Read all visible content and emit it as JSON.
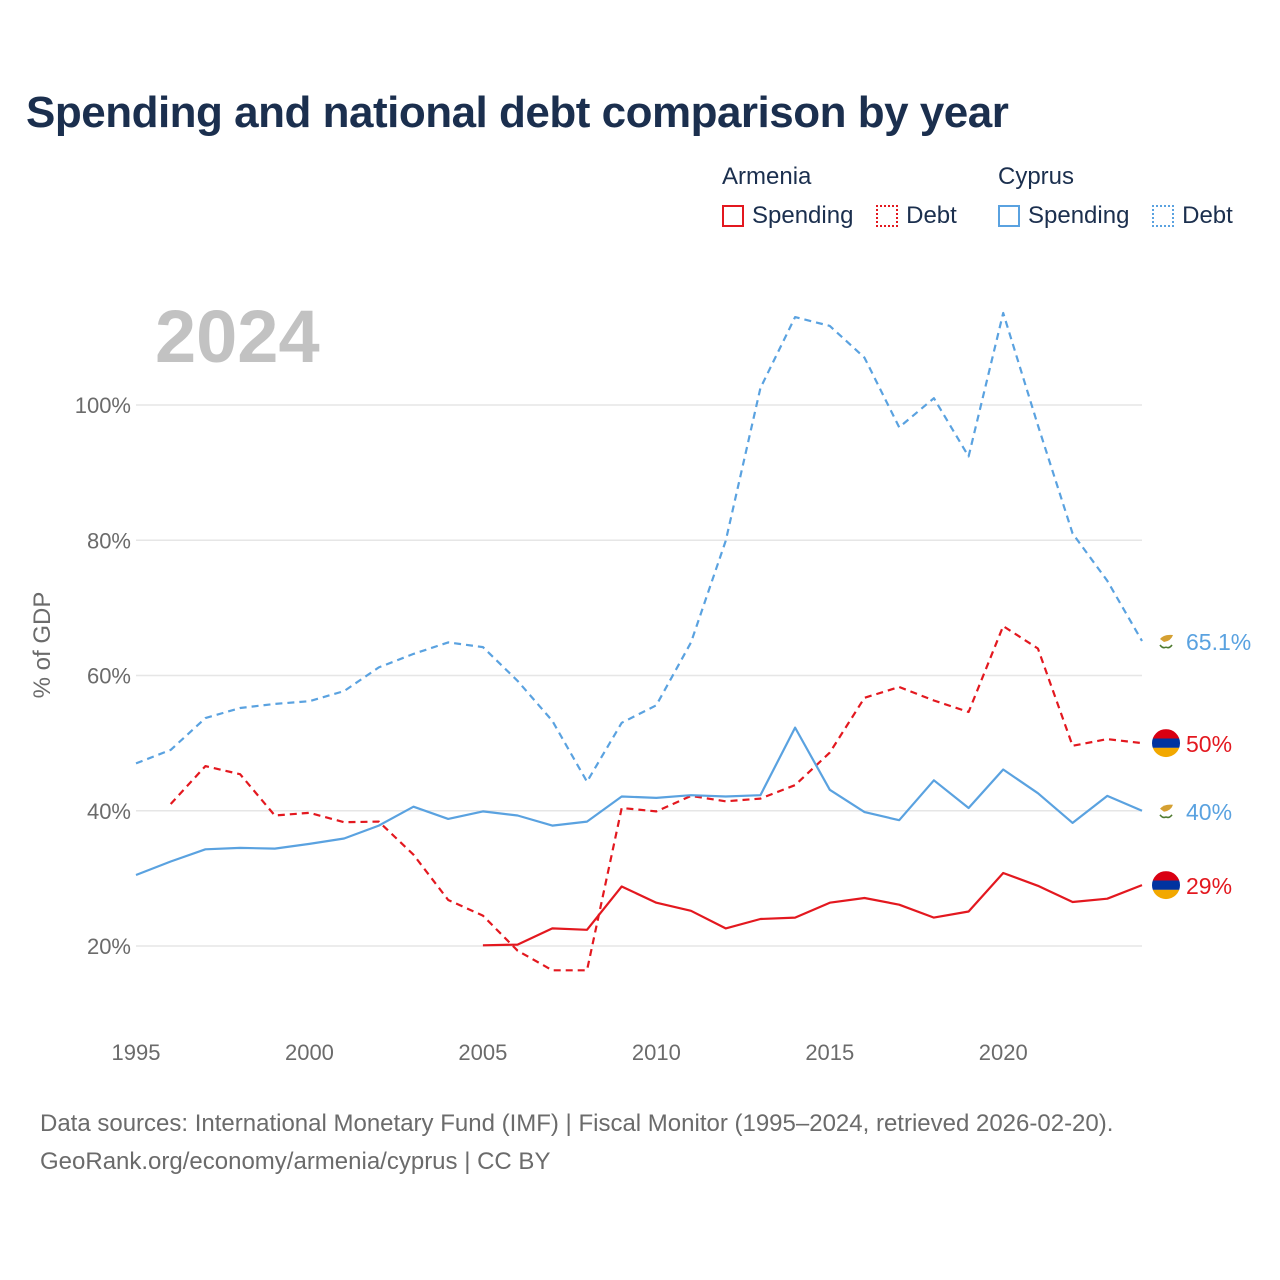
{
  "title": "Spending and national debt comparison by year",
  "legend": {
    "groups": [
      {
        "name": "Armenia",
        "spending": "Spending",
        "debt": "Debt",
        "color": "#e3181f"
      },
      {
        "name": "Cyprus",
        "spending": "Spending",
        "debt": "Debt",
        "color": "#5aa2e0"
      }
    ]
  },
  "footer": {
    "source": "Data sources: International Monetary Fund (IMF) | Fiscal Monitor (1995–2024, retrieved 2026-02-20).",
    "credit": "GeoRank.org/economy/armenia/cyprus | CC BY"
  },
  "chart_data": {
    "type": "line",
    "year_label": "2024",
    "ylabel": "% of GDP",
    "xlim": [
      1995,
      2024
    ],
    "ylim": [
      10,
      115
    ],
    "x_ticks": [
      {
        "value": 1995,
        "label": "1995"
      },
      {
        "value": 2000,
        "label": "2000"
      },
      {
        "value": 2005,
        "label": "2005"
      },
      {
        "value": 2010,
        "label": "2010"
      },
      {
        "value": 2015,
        "label": "2015"
      },
      {
        "value": 2020,
        "label": "2020"
      }
    ],
    "y_ticks": [
      {
        "value": 20,
        "label": "20%"
      },
      {
        "value": 40,
        "label": "40%"
      },
      {
        "value": 60,
        "label": "60%"
      },
      {
        "value": 80,
        "label": "80%"
      },
      {
        "value": 100,
        "label": "100%"
      }
    ],
    "grid": true,
    "series": [
      {
        "id": "cy-debt",
        "name": "Cyprus Debt",
        "country": "Cyprus",
        "color": "#5aa2e0",
        "dashed": true,
        "flag": "cyprus-flag-icon",
        "end_label": "65.1%",
        "x": [
          1995,
          1996,
          1997,
          1998,
          1999,
          2000,
          2001,
          2002,
          2003,
          2004,
          2005,
          2006,
          2007,
          2008,
          2009,
          2010,
          2011,
          2012,
          2013,
          2014,
          2015,
          2016,
          2017,
          2018,
          2019,
          2020,
          2021,
          2022,
          2023,
          2024
        ],
        "values": [
          47,
          49,
          53.7,
          55.2,
          55.8,
          56.2,
          57.7,
          61.2,
          63.2,
          64.9,
          64.2,
          59.2,
          53.3,
          44.3,
          53,
          55.6,
          64.9,
          79.9,
          102.5,
          113,
          111.7,
          107,
          96.7,
          101,
          92.4,
          113.6,
          97,
          81,
          74,
          65.1
        ]
      },
      {
        "id": "am-debt",
        "name": "Armenia Debt",
        "country": "Armenia",
        "color": "#e3181f",
        "dashed": true,
        "flag": "armenia-flag-icon",
        "end_label": "50%",
        "x": [
          1996,
          1997,
          1998,
          1999,
          2000,
          2001,
          2002,
          2003,
          2004,
          2005,
          2006,
          2007,
          2008,
          2009,
          2010,
          2011,
          2012,
          2013,
          2014,
          2015,
          2016,
          2017,
          2018,
          2019,
          2020,
          2021,
          2022,
          2023,
          2024
        ],
        "values": [
          41,
          46.6,
          45.4,
          39.3,
          39.7,
          38.3,
          38.4,
          33.5,
          26.8,
          24.5,
          19.3,
          16.4,
          16.4,
          40.4,
          39.9,
          42.2,
          41.4,
          41.8,
          43.8,
          48.6,
          56.7,
          58.3,
          56.3,
          54.6,
          67.3,
          64,
          49.6,
          50.6,
          50
        ]
      },
      {
        "id": "cy-spending",
        "name": "Cyprus Spending",
        "country": "Cyprus",
        "color": "#5aa2e0",
        "dashed": false,
        "flag": "cyprus-flag-icon",
        "end_label": "40%",
        "x": [
          1995,
          1996,
          1997,
          1998,
          1999,
          2000,
          2001,
          2002,
          2003,
          2004,
          2005,
          2006,
          2007,
          2008,
          2009,
          2010,
          2011,
          2012,
          2013,
          2014,
          2015,
          2016,
          2017,
          2018,
          2019,
          2020,
          2021,
          2022,
          2023,
          2024
        ],
        "values": [
          30.5,
          32.5,
          34.3,
          34.5,
          34.4,
          35.1,
          35.9,
          37.8,
          40.6,
          38.8,
          39.9,
          39.3,
          37.8,
          38.4,
          42.1,
          41.9,
          42.3,
          42.1,
          42.3,
          52.3,
          43.1,
          39.8,
          38.6,
          44.5,
          40.4,
          46.1,
          42.6,
          38.2,
          42.2,
          40
        ]
      },
      {
        "id": "am-spending",
        "name": "Armenia Spending",
        "country": "Armenia",
        "color": "#e3181f",
        "dashed": false,
        "flag": "armenia-flag-icon",
        "end_label": "29%",
        "x": [
          2005,
          2006,
          2007,
          2008,
          2009,
          2010,
          2011,
          2012,
          2013,
          2014,
          2015,
          2016,
          2017,
          2018,
          2019,
          2020,
          2021,
          2022,
          2023,
          2024
        ],
        "values": [
          20.1,
          20.2,
          22.6,
          22.4,
          28.8,
          26.4,
          25.2,
          22.6,
          24,
          24.2,
          26.4,
          27.1,
          26.1,
          24.2,
          25.1,
          30.8,
          28.9,
          26.5,
          27,
          29
        ]
      }
    ]
  }
}
